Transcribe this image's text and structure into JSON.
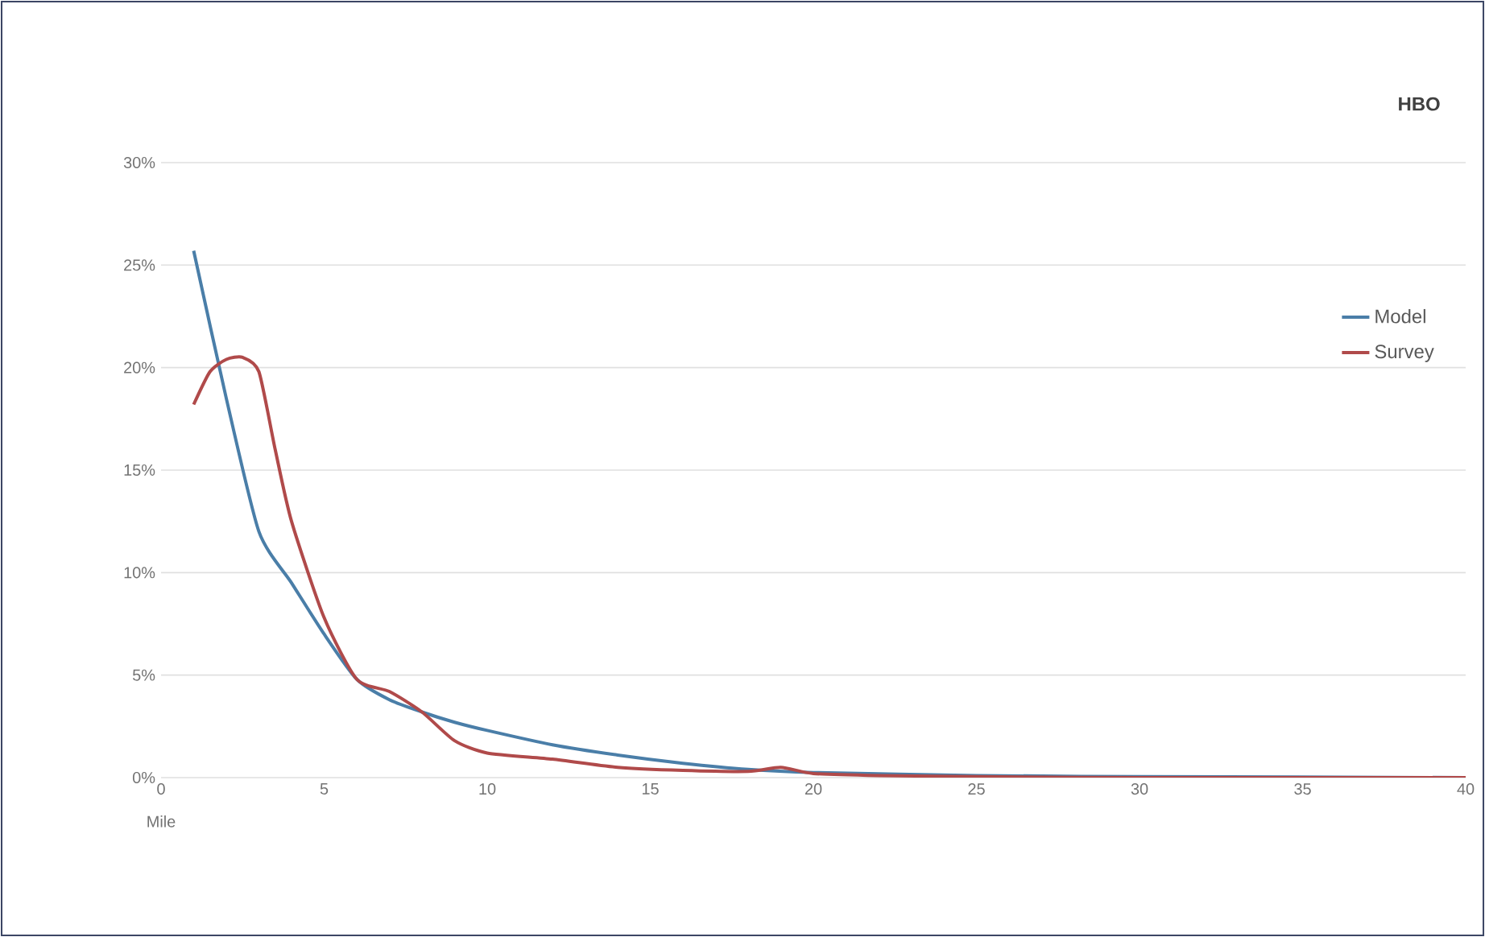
{
  "chart_data": {
    "type": "line",
    "title": "HBO",
    "xlabel": "Mile",
    "xlim": [
      0,
      40
    ],
    "ylim": [
      0,
      30
    ],
    "xticks": [
      0,
      5,
      10,
      15,
      20,
      25,
      30,
      35,
      40
    ],
    "yticks": [
      {
        "value": 0,
        "label": "0%"
      },
      {
        "value": 5,
        "label": "5%"
      },
      {
        "value": 10,
        "label": "10%"
      },
      {
        "value": 15,
        "label": "15%"
      },
      {
        "value": 20,
        "label": "20%"
      },
      {
        "value": 25,
        "label": "25%"
      },
      {
        "value": 30,
        "label": "30%"
      }
    ],
    "grid": "y",
    "legend": "right",
    "marker": "none",
    "line_style": "solid",
    "series": [
      {
        "name": "Model",
        "color": "#4a7ea8",
        "x": [
          1,
          2,
          3,
          4,
          5,
          6,
          7,
          8,
          9,
          10,
          12,
          14,
          16,
          18,
          20,
          25,
          30,
          40
        ],
        "values": [
          25.7,
          18.5,
          12,
          9.5,
          7,
          4.8,
          3.8,
          3.2,
          2.7,
          2.3,
          1.6,
          1.1,
          0.7,
          0.4,
          0.25,
          0.1,
          0.05,
          0
        ]
      },
      {
        "name": "Survey",
        "color": "#b04a4a",
        "x": [
          1,
          1.5,
          2,
          2.5,
          3,
          3.5,
          4,
          5,
          6,
          7,
          8,
          9,
          10,
          12,
          14,
          16,
          18,
          19,
          20,
          22,
          25,
          30,
          40
        ],
        "values": [
          18.2,
          19.8,
          20.4,
          20.5,
          19.8,
          16,
          12.5,
          7.8,
          4.8,
          4.2,
          3.2,
          1.8,
          1.2,
          0.9,
          0.5,
          0.35,
          0.3,
          0.5,
          0.2,
          0.1,
          0.05,
          0,
          0
        ]
      }
    ]
  }
}
